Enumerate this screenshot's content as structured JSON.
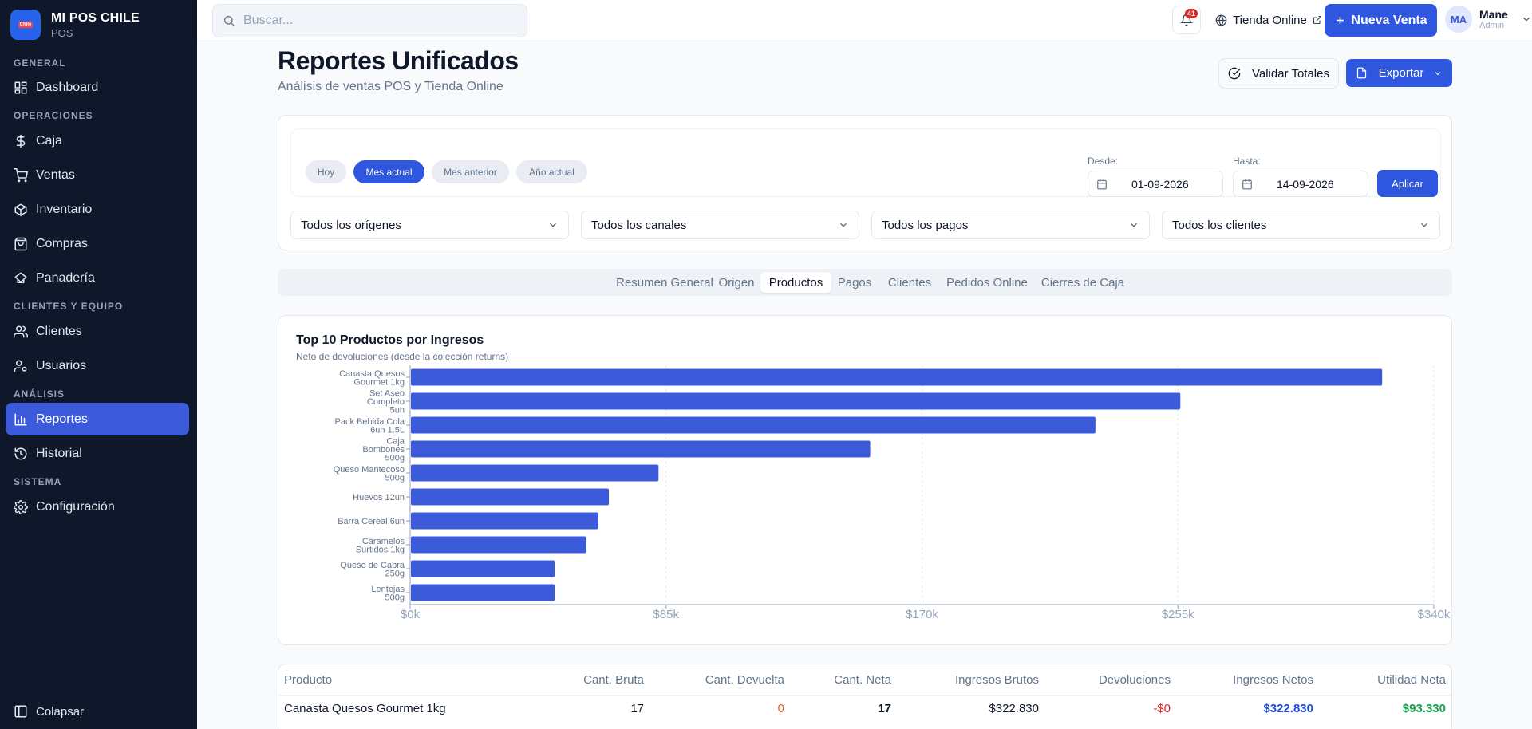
{
  "brand": {
    "name": "MI POS CHILE",
    "sub": "POS",
    "logo_badge": "Chile"
  },
  "sidebar": {
    "sections": [
      "GENERAL",
      "OPERACIONES",
      "CLIENTES Y EQUIPO",
      "ANÁLISIS",
      "SISTEMA"
    ],
    "items": [
      {
        "label": "Dashboard",
        "icon": "dashboard-icon"
      },
      {
        "label": "Caja",
        "icon": "dollar-icon"
      },
      {
        "label": "Ventas",
        "icon": "cart-icon"
      },
      {
        "label": "Inventario",
        "icon": "box-icon"
      },
      {
        "label": "Compras",
        "icon": "bag-icon"
      },
      {
        "label": "Panadería",
        "icon": "chef-hat-icon"
      },
      {
        "label": "Clientes",
        "icon": "users-icon"
      },
      {
        "label": "Usuarios",
        "icon": "user-cog-icon"
      },
      {
        "label": "Reportes",
        "icon": "bar-chart-icon",
        "active": true
      },
      {
        "label": "Historial",
        "icon": "history-icon"
      },
      {
        "label": "Configuración",
        "icon": "gear-icon"
      }
    ],
    "collapse_label": "Colapsar"
  },
  "topbar": {
    "search_placeholder": "Buscar...",
    "notifications_count": "41",
    "online_label": "Tienda Online",
    "new_sale_label": "Nueva Venta",
    "user": {
      "initials": "MA",
      "name": "Mane",
      "role": "Admin"
    }
  },
  "page": {
    "title": "Reportes Unificados",
    "subtitle": "Análisis de ventas POS y Tienda Online",
    "validate_label": "Validar Totales",
    "export_label": "Exportar"
  },
  "filters": {
    "chips": [
      "Hoy",
      "Mes actual",
      "Mes anterior",
      "Año actual"
    ],
    "active_chip": "Mes actual",
    "from_label": "Desde:",
    "from_value": "01-09-2026",
    "to_label": "Hasta:",
    "to_value": "14-09-2026",
    "apply_label": "Aplicar",
    "selects": [
      "Todos los orígenes",
      "Todos los canales",
      "Todos los pagos",
      "Todos los clientes"
    ]
  },
  "tabs": [
    "Resumen General",
    "Origen",
    "Productos",
    "Pagos",
    "Clientes",
    "Pedidos Online",
    "Cierres de Caja"
  ],
  "active_tab": "Productos",
  "chart_card": {
    "title": "Top 10 Productos por Ingresos",
    "subtitle": "Neto de devoluciones (desde la colección returns)"
  },
  "chart_data": {
    "type": "bar",
    "orientation": "horizontal",
    "title": "Top 10 Productos por Ingresos",
    "subtitle": "Neto de devoluciones (desde la colección returns)",
    "categories": [
      [
        "Canasta Quesos",
        "Gourmet 1kg"
      ],
      [
        "Set Aseo",
        "Completo",
        "5un"
      ],
      [
        "Pack Bebida Cola",
        "6un 1.5L"
      ],
      [
        "Caja",
        "Bombones",
        "500g"
      ],
      [
        "Queso Mantecoso",
        "500g"
      ],
      [
        "Huevos 12un"
      ],
      [
        "Barra Cereal 6un"
      ],
      [
        "Caramelos",
        "Surtidos 1kg"
      ],
      [
        "Queso de Cabra",
        "250g"
      ],
      [
        "Lentejas",
        "500g"
      ]
    ],
    "values": [
      322830,
      255800,
      227600,
      152800,
      82500,
      66000,
      62500,
      58500,
      48000,
      48000
    ],
    "xlim": [
      0,
      340000
    ],
    "xticks": [
      "$0k",
      "$85k",
      "$170k",
      "$255k",
      "$340k"
    ],
    "grid": true,
    "bar_color": "#3b5bdb"
  },
  "table": {
    "headers": [
      "Producto",
      "Cant. Bruta",
      "Cant. Devuelta",
      "Cant. Neta",
      "Ingresos Brutos",
      "Devoluciones",
      "Ingresos Netos",
      "Utilidad Neta"
    ],
    "rows": [
      {
        "producto": "Canasta Quesos Gourmet 1kg",
        "cant_bruta": "17",
        "cant_devuelta": "0",
        "cant_neta": "17",
        "ingresos_brutos": "$322.830",
        "devoluciones": "-$0",
        "ingresos_netos": "$322.830",
        "utilidad_neta": "$93.330"
      }
    ]
  },
  "colors": {
    "accent": "#2f57e0",
    "sidebar_bg": "#0f172a",
    "negative": "#dc2626",
    "positive": "#16a34a",
    "link": "#1d4ed8"
  }
}
